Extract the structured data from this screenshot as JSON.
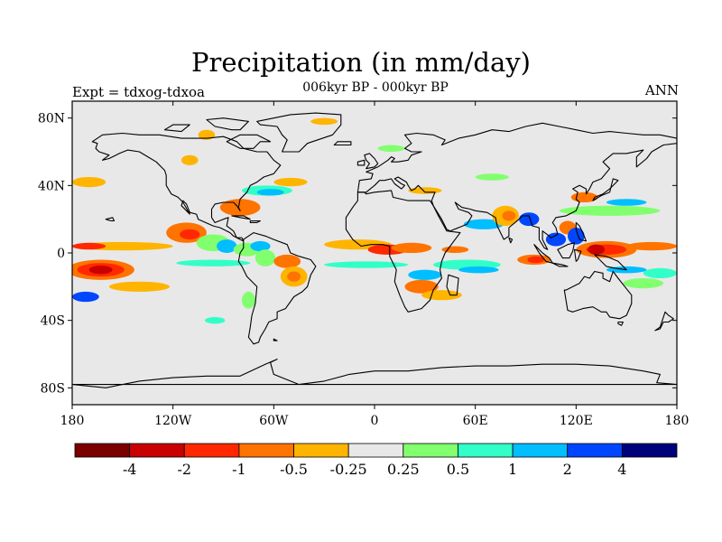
{
  "title": "Precipitation (in mm/day)",
  "subtitle": "006kyr BP - 000kyr BP",
  "left_label": "Expt = tdxog-tdxoa",
  "right_label": "ANN",
  "map": {
    "projection": "cylindrical-equidistant",
    "lon_range": [
      -180,
      180
    ],
    "lat_range": [
      -90,
      90
    ],
    "background_color": "#e8e8e8",
    "lat_ticks": [
      {
        "lat": 80,
        "label": "80N"
      },
      {
        "lat": 40,
        "label": "40N"
      },
      {
        "lat": 0,
        "label": "0"
      },
      {
        "lat": -40,
        "label": "40S"
      },
      {
        "lat": -80,
        "label": "80S"
      }
    ],
    "lon_ticks": [
      {
        "lon": -180,
        "label": "180"
      },
      {
        "lon": -120,
        "label": "120W"
      },
      {
        "lon": -60,
        "label": "60W"
      },
      {
        "lon": 0,
        "label": "0"
      },
      {
        "lon": 60,
        "label": "60E"
      },
      {
        "lon": 120,
        "label": "120E"
      },
      {
        "lon": 180,
        "label": "180"
      }
    ]
  },
  "colorbar": {
    "colors": [
      "#7a0000",
      "#c80000",
      "#ff2800",
      "#ff7300",
      "#ffb400",
      "#e8e8e8",
      "#82ff6e",
      "#32ffc8",
      "#00beff",
      "#0046ff",
      "#00007a"
    ],
    "labels": [
      "-4",
      "-2",
      "-1",
      "-0.5",
      "-0.25",
      "0.25",
      "0.5",
      "1",
      "2",
      "4"
    ]
  },
  "anomaly_patches": [
    {
      "lon": -163,
      "lat": -10,
      "rx": 20,
      "ry": 6,
      "c": 3
    },
    {
      "lon": -163,
      "lat": -10,
      "rx": 14,
      "ry": 4,
      "c": 2
    },
    {
      "lon": -163,
      "lat": -10,
      "rx": 7,
      "ry": 2.5,
      "c": 1
    },
    {
      "lon": -140,
      "lat": -20,
      "rx": 18,
      "ry": 3,
      "c": 4
    },
    {
      "lon": -172,
      "lat": -26,
      "rx": 8,
      "ry": 3,
      "c": 9
    },
    {
      "lon": -150,
      "lat": 4,
      "rx": 30,
      "ry": 2.5,
      "c": 4
    },
    {
      "lon": -170,
      "lat": 4,
      "rx": 10,
      "ry": 2,
      "c": 2
    },
    {
      "lon": -112,
      "lat": 12,
      "rx": 12,
      "ry": 6,
      "c": 3
    },
    {
      "lon": -110,
      "lat": 11,
      "rx": 6,
      "ry": 3,
      "c": 2
    },
    {
      "lon": -96,
      "lat": 6,
      "rx": 10,
      "ry": 5,
      "c": 6
    },
    {
      "lon": -88,
      "lat": 4,
      "rx": 6,
      "ry": 4,
      "c": 8
    },
    {
      "lon": -76,
      "lat": 2,
      "rx": 8,
      "ry": 4,
      "c": 6
    },
    {
      "lon": -68,
      "lat": 4,
      "rx": 6,
      "ry": 3,
      "c": 8
    },
    {
      "lon": -96,
      "lat": -6,
      "rx": 22,
      "ry": 2,
      "c": 7
    },
    {
      "lon": -80,
      "lat": 27,
      "rx": 12,
      "ry": 5,
      "c": 3
    },
    {
      "lon": -64,
      "lat": 37,
      "rx": 15,
      "ry": 3,
      "c": 7
    },
    {
      "lon": -62,
      "lat": 36,
      "rx": 8,
      "ry": 2,
      "c": 8
    },
    {
      "lon": -50,
      "lat": 42,
      "rx": 10,
      "ry": 2.5,
      "c": 4
    },
    {
      "lon": -170,
      "lat": 42,
      "rx": 10,
      "ry": 3,
      "c": 4
    },
    {
      "lon": -65,
      "lat": -3,
      "rx": 6,
      "ry": 5,
      "c": 6
    },
    {
      "lon": -52,
      "lat": -5,
      "rx": 8,
      "ry": 4,
      "c": 3
    },
    {
      "lon": -48,
      "lat": -14,
      "rx": 8,
      "ry": 6,
      "c": 4
    },
    {
      "lon": -48,
      "lat": -14,
      "rx": 4,
      "ry": 3,
      "c": 3
    },
    {
      "lon": -75,
      "lat": -28,
      "rx": 4,
      "ry": 5,
      "c": 6
    },
    {
      "lon": -10,
      "lat": 5,
      "rx": 20,
      "ry": 3,
      "c": 4
    },
    {
      "lon": 8,
      "lat": 2,
      "rx": 12,
      "ry": 3,
      "c": 2
    },
    {
      "lon": 22,
      "lat": 3,
      "rx": 12,
      "ry": 3,
      "c": 3
    },
    {
      "lon": -5,
      "lat": -7,
      "rx": 25,
      "ry": 2,
      "c": 7
    },
    {
      "lon": 30,
      "lat": -13,
      "rx": 10,
      "ry": 3,
      "c": 8
    },
    {
      "lon": 28,
      "lat": -20,
      "rx": 10,
      "ry": 4,
      "c": 3
    },
    {
      "lon": 40,
      "lat": -25,
      "rx": 12,
      "ry": 3,
      "c": 4
    },
    {
      "lon": 55,
      "lat": -7,
      "rx": 20,
      "ry": 3,
      "c": 7
    },
    {
      "lon": 62,
      "lat": -10,
      "rx": 12,
      "ry": 2,
      "c": 8
    },
    {
      "lon": 48,
      "lat": 2,
      "rx": 8,
      "ry": 2,
      "c": 3
    },
    {
      "lon": 65,
      "lat": 17,
      "rx": 12,
      "ry": 3,
      "c": 8
    },
    {
      "lon": 78,
      "lat": 22,
      "rx": 8,
      "ry": 6,
      "c": 4
    },
    {
      "lon": 80,
      "lat": 22,
      "rx": 4,
      "ry": 3,
      "c": 3
    },
    {
      "lon": 92,
      "lat": 20,
      "rx": 6,
      "ry": 4,
      "c": 9
    },
    {
      "lon": 95,
      "lat": -4,
      "rx": 10,
      "ry": 3,
      "c": 3
    },
    {
      "lon": 96,
      "lat": -4,
      "rx": 5,
      "ry": 2,
      "c": 2
    },
    {
      "lon": 108,
      "lat": 8,
      "rx": 6,
      "ry": 4,
      "c": 9
    },
    {
      "lon": 115,
      "lat": 15,
      "rx": 5,
      "ry": 4,
      "c": 3
    },
    {
      "lon": 120,
      "lat": 10,
      "rx": 5,
      "ry": 5,
      "c": 9
    },
    {
      "lon": 138,
      "lat": 2,
      "rx": 18,
      "ry": 5,
      "c": 3
    },
    {
      "lon": 138,
      "lat": 2,
      "rx": 12,
      "ry": 3,
      "c": 2
    },
    {
      "lon": 132,
      "lat": 2,
      "rx": 5,
      "ry": 3,
      "c": 1
    },
    {
      "lon": 165,
      "lat": 4,
      "rx": 15,
      "ry": 2.5,
      "c": 3
    },
    {
      "lon": 170,
      "lat": -12,
      "rx": 10,
      "ry": 3,
      "c": 7
    },
    {
      "lon": 140,
      "lat": 25,
      "rx": 30,
      "ry": 3,
      "c": 6
    },
    {
      "lon": 150,
      "lat": 30,
      "rx": 12,
      "ry": 2,
      "c": 8
    },
    {
      "lon": 125,
      "lat": 33,
      "rx": 8,
      "ry": 3,
      "c": 3
    },
    {
      "lon": 150,
      "lat": -10,
      "rx": 12,
      "ry": 2,
      "c": 8
    },
    {
      "lon": 160,
      "lat": -18,
      "rx": 12,
      "ry": 3,
      "c": 6
    },
    {
      "lon": 30,
      "lat": 37,
      "rx": 10,
      "ry": 2,
      "c": 4
    },
    {
      "lon": 70,
      "lat": 45,
      "rx": 10,
      "ry": 2,
      "c": 6
    },
    {
      "lon": -110,
      "lat": 55,
      "rx": 5,
      "ry": 3,
      "c": 4
    },
    {
      "lon": -100,
      "lat": 70,
      "rx": 5,
      "ry": 3,
      "c": 4
    },
    {
      "lon": 10,
      "lat": 62,
      "rx": 8,
      "ry": 2,
      "c": 6
    },
    {
      "lon": -30,
      "lat": 78,
      "rx": 8,
      "ry": 2,
      "c": 4
    },
    {
      "lon": -95,
      "lat": -40,
      "rx": 6,
      "ry": 2,
      "c": 7
    }
  ]
}
